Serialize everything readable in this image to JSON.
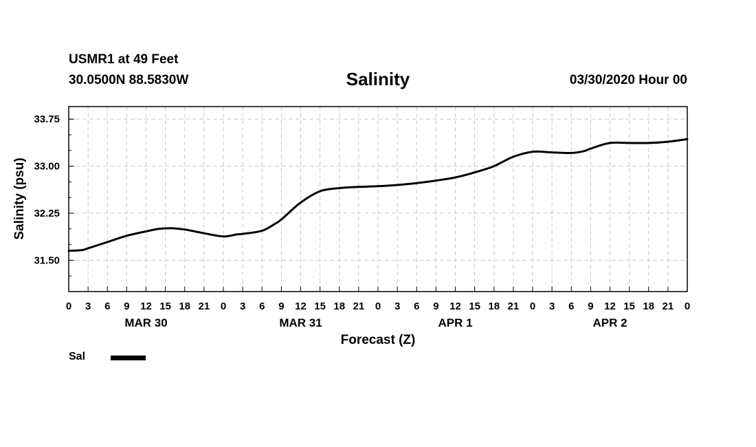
{
  "header": {
    "station": "USMR1 at 49 Feet",
    "coords": "30.0500N 88.5830W",
    "datetime": "03/30/2020 Hour 00"
  },
  "legend": {
    "label": "Sal"
  },
  "chart_data": {
    "type": "line",
    "title": "Salinity",
    "xlabel": "Forecast (Z)",
    "ylabel": "Salinity (psu)",
    "x_unit": "forecast hour",
    "xlim": [
      0,
      96
    ],
    "ylim": [
      31.0,
      33.95
    ],
    "grid": true,
    "x_ticks": [
      0,
      3,
      6,
      9,
      12,
      15,
      18,
      21,
      24,
      27,
      30,
      33,
      36,
      39,
      42,
      45,
      48,
      51,
      54,
      57,
      60,
      63,
      66,
      69,
      72,
      75,
      78,
      81,
      84,
      87,
      90,
      93,
      96
    ],
    "x_tick_labels": [
      "0",
      "3",
      "6",
      "9",
      "12",
      "15",
      "18",
      "21",
      "0",
      "3",
      "6",
      "9",
      "12",
      "15",
      "18",
      "21",
      "0",
      "3",
      "6",
      "9",
      "12",
      "15",
      "18",
      "21",
      "0",
      "3",
      "6",
      "9",
      "12",
      "15",
      "18",
      "21",
      "0"
    ],
    "date_labels": [
      {
        "label": "MAR 30",
        "x": 12
      },
      {
        "label": "MAR 31",
        "x": 36
      },
      {
        "label": "APR 1",
        "x": 60
      },
      {
        "label": "APR 2",
        "x": 84
      }
    ],
    "y_ticks": [
      31.5,
      32.25,
      33.0,
      33.75
    ],
    "y_tick_labels": [
      "31.50",
      "32.25",
      "33.00",
      "33.75"
    ],
    "y_minor_ticks": [
      31.25,
      31.5,
      31.75,
      32.0,
      32.25,
      32.5,
      32.75,
      33.0,
      33.25,
      33.5,
      33.75
    ],
    "series": [
      {
        "name": "Sal",
        "color": "#000000",
        "x": [
          0,
          2,
          3,
          6,
          9,
          12,
          14,
          16,
          18,
          21,
          24,
          26,
          27,
          30,
          32,
          33,
          36,
          39,
          42,
          45,
          48,
          51,
          54,
          57,
          60,
          63,
          66,
          69,
          72,
          75,
          78,
          80,
          81,
          84,
          87,
          90,
          93,
          96
        ],
        "values": [
          31.65,
          31.66,
          31.69,
          31.79,
          31.89,
          31.96,
          32.0,
          32.01,
          31.99,
          31.93,
          31.88,
          31.91,
          31.92,
          31.97,
          32.08,
          32.15,
          32.42,
          32.6,
          32.65,
          32.67,
          32.68,
          32.7,
          32.73,
          32.77,
          32.82,
          32.9,
          33.0,
          33.15,
          33.23,
          33.22,
          33.21,
          33.24,
          33.28,
          33.37,
          33.37,
          33.37,
          33.39,
          33.43
        ]
      }
    ]
  }
}
